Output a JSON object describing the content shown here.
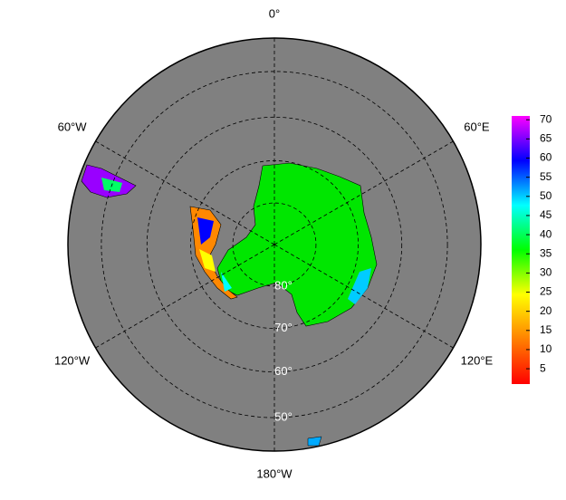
{
  "map": {
    "longitude_labels": [
      {
        "value": 0,
        "label": "0°"
      },
      {
        "value": 60,
        "label": "60°E"
      },
      {
        "value": 120,
        "label": "120°E"
      },
      {
        "value": 180,
        "label": "180°W"
      },
      {
        "value": -120,
        "label": "120°W"
      },
      {
        "value": -60,
        "label": "60°W"
      }
    ],
    "latitude_labels": [
      {
        "value": 80,
        "label": "80°"
      },
      {
        "value": 70,
        "label": "70°"
      },
      {
        "value": 60,
        "label": "60°"
      },
      {
        "value": 50,
        "label": "50°"
      }
    ],
    "colorbar": {
      "lim": [
        1,
        71
      ],
      "ticks": [
        5,
        10,
        15,
        20,
        25,
        30,
        35,
        40,
        45,
        50,
        55,
        60,
        65,
        70
      ],
      "colors": [
        "#ff0000",
        "#ff8000",
        "#ffff00",
        "#00ff00",
        "#00ffff",
        "#0000ff",
        "#ff00ff"
      ]
    }
  }
}
